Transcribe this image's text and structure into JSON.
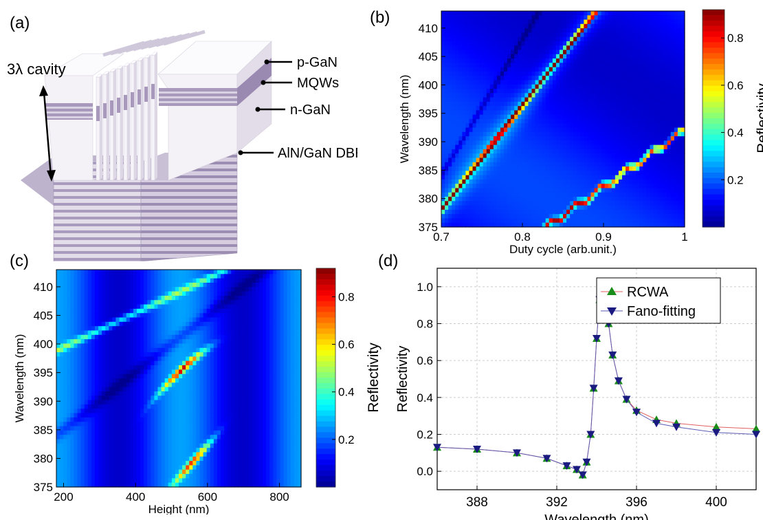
{
  "panels": {
    "a": {
      "letter": "(a)",
      "cavity_label": "3λ cavity",
      "layers": [
        "p-GaN",
        "MQWs",
        "n-GaN",
        "AlN/GaN DBR"
      ]
    },
    "b": {
      "letter": "(b)"
    },
    "c": {
      "letter": "(c)"
    },
    "d": {
      "letter": "(d)"
    }
  },
  "colormap": [
    "#00008f",
    "#0000ff",
    "#0080ff",
    "#00ffff",
    "#80ff80",
    "#ffff00",
    "#ff8000",
    "#ff0000",
    "#800000"
  ],
  "colors": {
    "rcwa": "#1a8c1a",
    "fano": "#1a1a80",
    "rcwa_line": "#e06060",
    "fano_line": "#5a5ab4"
  },
  "chart_data": [
    {
      "type": "heatmap",
      "panel": "b",
      "xlabel": "Duty cycle (arb.unit.)",
      "ylabel": "Wavelength (nm)",
      "colorbar_label": "Reflectivity",
      "xlim": [
        0.7,
        1.0
      ],
      "ylim": [
        375,
        413
      ],
      "zlim": [
        0,
        0.92
      ],
      "x_ticks": [
        "0.7",
        "0.8",
        "0.9",
        "1"
      ],
      "y_ticks": [
        "410",
        "405",
        "400",
        "395",
        "390",
        "385",
        "380",
        "375"
      ],
      "colorbar_ticks": [
        "0.8",
        "0.6",
        "0.4",
        "0.2"
      ]
    },
    {
      "type": "heatmap",
      "panel": "c",
      "xlabel": "Height (nm)",
      "ylabel": "Wavelength (nm)",
      "colorbar_label": "Reflectivity",
      "xlim": [
        180,
        860
      ],
      "ylim": [
        375,
        413
      ],
      "zlim": [
        0,
        0.92
      ],
      "x_ticks": [
        "200",
        "400",
        "600",
        "800"
      ],
      "y_ticks": [
        "410",
        "405",
        "400",
        "395",
        "390",
        "385",
        "380",
        "375"
      ],
      "colorbar_ticks": [
        "0.8",
        "0.6",
        "0.4",
        "0.2"
      ]
    },
    {
      "type": "scatter",
      "panel": "d",
      "xlabel": "Wavelength (nm)",
      "ylabel": "Reflectivity",
      "xlim": [
        386,
        402
      ],
      "ylim": [
        -0.1,
        1.1
      ],
      "x_ticks": [
        "388",
        "392",
        "396",
        "400"
      ],
      "y_ticks": [
        "1.0",
        "0.8",
        "0.6",
        "0.4",
        "0.2",
        "0.0"
      ],
      "grid": true,
      "legend_position": "top-right",
      "resonance": {
        "center": 394.1,
        "linewidth": 0.55,
        "q": -0.8
      },
      "series": [
        {
          "name": "RCWA",
          "x": [
            386.0,
            388.0,
            390.0,
            391.5,
            392.5,
            393.0,
            393.3,
            393.5,
            393.7,
            393.85,
            394.0,
            394.15,
            394.3,
            394.45,
            394.6,
            394.8,
            395.1,
            395.5,
            396.0,
            397.0,
            398.0,
            400.0,
            402.0
          ],
          "values": [
            0.13,
            0.12,
            0.1,
            0.07,
            0.03,
            0.01,
            -0.02,
            0.05,
            0.2,
            0.45,
            0.72,
            0.93,
            1.0,
            0.96,
            0.8,
            0.63,
            0.49,
            0.39,
            0.33,
            0.28,
            0.26,
            0.24,
            0.23
          ]
        },
        {
          "name": "Fano-fitting",
          "x": [
            386.0,
            388.0,
            390.0,
            391.5,
            392.5,
            393.0,
            393.3,
            393.5,
            393.7,
            393.85,
            394.0,
            394.15,
            394.3,
            394.45,
            394.6,
            394.8,
            395.1,
            395.5,
            396.0,
            397.0,
            398.0,
            400.0,
            402.0
          ],
          "values": [
            0.13,
            0.12,
            0.1,
            0.07,
            0.03,
            0.01,
            -0.02,
            0.05,
            0.2,
            0.45,
            0.72,
            0.93,
            1.0,
            0.96,
            0.8,
            0.63,
            0.49,
            0.39,
            0.32,
            0.26,
            0.24,
            0.21,
            0.2
          ]
        }
      ]
    }
  ]
}
